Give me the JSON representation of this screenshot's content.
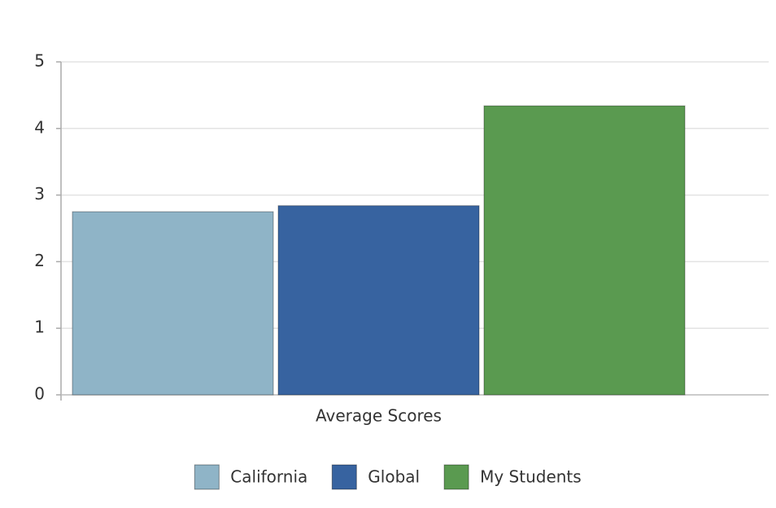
{
  "chart_data": {
    "type": "bar",
    "categories": [
      "Average Scores"
    ],
    "series": [
      {
        "name": "California",
        "color": "#8fb4c7",
        "values": [
          2.75
        ]
      },
      {
        "name": "Global",
        "color": "#3763a0",
        "values": [
          2.84
        ]
      },
      {
        "name": "My Students",
        "color": "#5a9a50",
        "values": [
          4.34
        ]
      }
    ],
    "ylim": [
      0,
      5
    ],
    "yticks": [
      0,
      1,
      2,
      3,
      4,
      5
    ],
    "grid": true
  }
}
